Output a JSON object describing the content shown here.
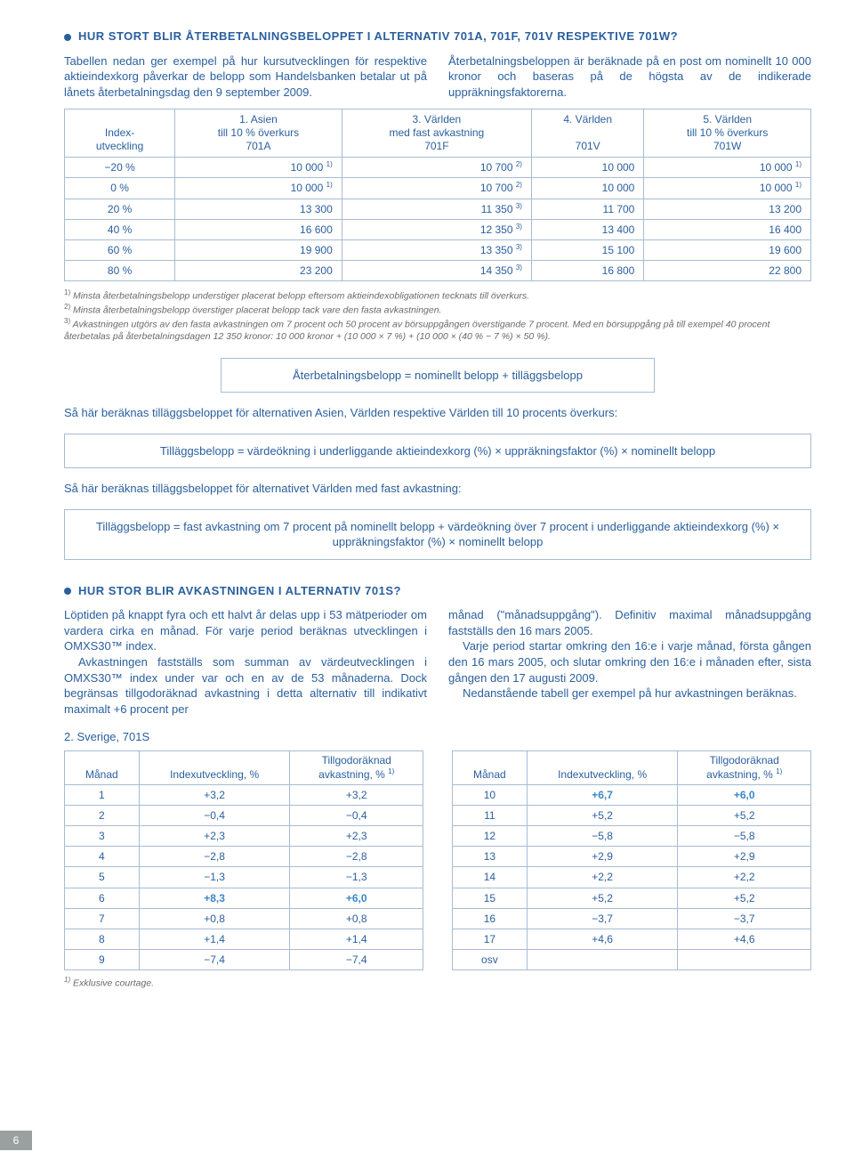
{
  "heading1": "HUR STORT BLIR ÅTERBETALNINGSBELOPPET I ALTERNATIV 701A, 701F, 701V RESPEKTIVE 701W?",
  "intro": {
    "left": "Tabellen nedan ger exempel på hur kursutvecklingen för respektive aktieindexkorg påverkar de belopp som Handelsbanken betalar ut på lånets återbetalningsdag den 9 september 2009.",
    "right": "Återbetalningsbeloppen är beräknade på en post om nominellt 10 000 kronor och baseras på de högsta av de indikerade uppräkningsfaktorerna."
  },
  "table1": {
    "headers": [
      "Index-<br>utveckling",
      "1. Asien<br>till 10 % överkurs<br>701A",
      "3. Världen<br>med fast avkastning<br>701F",
      "4. Världen<br><br>701V",
      "5. Världen<br>till 10 % överkurs<br>701W"
    ],
    "rows": [
      [
        "−20 %",
        "10 000 <sup>1)</sup>",
        "10 700 <sup>2)</sup>",
        "10 000",
        "10 000 <sup>1)</sup>"
      ],
      [
        "0 %",
        "10 000 <sup>1)</sup>",
        "10 700 <sup>2)</sup>",
        "10 000",
        "10 000 <sup>1)</sup>"
      ],
      [
        "20 %",
        "13 300",
        "11 350 <sup>3)</sup>",
        "11 700",
        "13 200"
      ],
      [
        "40 %",
        "16 600",
        "12 350 <sup>3)</sup>",
        "13 400",
        "16 400"
      ],
      [
        "60 %",
        "19 900",
        "13 350 <sup>3)</sup>",
        "15 100",
        "19 600"
      ],
      [
        "80 %",
        "23 200",
        "14 350 <sup>3)</sup>",
        "16 800",
        "22 800"
      ]
    ]
  },
  "footnotes": [
    "<sup>1)</sup> Minsta återbetalningsbelopp understiger placerat belopp eftersom aktieindexobligationen tecknats till överkurs.",
    "<sup>2)</sup> Minsta återbetalningsbelopp överstiger placerat belopp tack vare den fasta avkastningen.",
    "<sup>3)</sup> Avkastningen utgörs av den fasta avkastningen om 7 procent och 50 procent av börsuppgången överstigande 7 procent. Med en börsuppgång på till exempel 40 procent återbetalas på återbetalningsdagen 12 350 kronor: 10 000 kronor + (10 000 × 7 %) + (10 000 × (40 % − 7 %) × 50 %)."
  ],
  "formula1": "Återbetalningsbelopp = nominellt belopp + tilläggsbelopp",
  "lead1": "Så här beräknas tilläggsbeloppet för alternativen Asien, Världen respektive Världen till 10 procents överkurs:",
  "formula2": "Tilläggsbelopp = värdeökning i underliggande aktieindexkorg (%) × uppräkningsfaktor (%) × nominellt belopp",
  "lead2": "Så här beräknas tilläggsbeloppet för alternativet Världen med fast avkastning:",
  "formula3": "Tilläggsbelopp = fast avkastning om 7 procent på nominellt belopp + värdeökning över 7 procent i underliggande aktieindexkorg (%) × uppräkningsfaktor (%) × nominellt belopp",
  "heading2": "HUR STOR BLIR AVKASTNINGEN I ALTERNATIV 701S?",
  "body2": {
    "left1": "Löptiden på knappt fyra och ett halvt år delas upp i 53 mätperioder om vardera cirka en månad. För varje period beräknas utvecklingen i OMXS30™ index.",
    "left2": "Avkastningen fastställs som summan av värdeutvecklingen i OMXS30™ index under var och en av de 53 månaderna. Dock begränsas tillgodoräknad avkastning i detta alternativ till indikativt maximalt +6 procent per",
    "right1": "månad (\"månadsuppgång\"). Definitiv maximal månadsuppgång fastställs den 16 mars 2005.",
    "right2": "Varje period startar omkring den 16:e i varje månad, första gången den 16 mars 2005, och slutar omkring den 16:e i månaden efter, sista gången den 17 augusti 2009.",
    "right3": "Nedanstående tabell ger exempel på hur avkastningen beräknas."
  },
  "table2caption": "2. Sverige, 701S",
  "table2headers": [
    "Månad",
    "Indexutveckling, %",
    "Tillgodoräknad<br>avkastning, % <sup>1)</sup>"
  ],
  "table2left": [
    [
      "1",
      "+3,2",
      "+3,2",
      ""
    ],
    [
      "2",
      "−0,4",
      "−0,4",
      ""
    ],
    [
      "3",
      "+2,3",
      "+2,3",
      ""
    ],
    [
      "4",
      "−2,8",
      "−2,8",
      ""
    ],
    [
      "5",
      "−1,3",
      "−1,3",
      ""
    ],
    [
      "6",
      "+8,3",
      "+6,0",
      "hl"
    ],
    [
      "7",
      "+0,8",
      "+0,8",
      ""
    ],
    [
      "8",
      "+1,4",
      "+1,4",
      ""
    ],
    [
      "9",
      "−7,4",
      "−7,4",
      ""
    ]
  ],
  "table2right": [
    [
      "10",
      "+6,7",
      "+6,0",
      "hl"
    ],
    [
      "11",
      "+5,2",
      "+5,2",
      ""
    ],
    [
      "12",
      "−5,8",
      "−5,8",
      ""
    ],
    [
      "13",
      "+2,9",
      "+2,9",
      ""
    ],
    [
      "14",
      "+2,2",
      "+2,2",
      ""
    ],
    [
      "15",
      "+5,2",
      "+5,2",
      ""
    ],
    [
      "16",
      "−3,7",
      "−3,7",
      ""
    ],
    [
      "17",
      "+4,6",
      "+4,6",
      ""
    ],
    [
      "osv",
      "",
      "",
      ""
    ]
  ],
  "footnote2": "<sup>1)</sup> Exklusive courtage.",
  "pagenum": "6"
}
